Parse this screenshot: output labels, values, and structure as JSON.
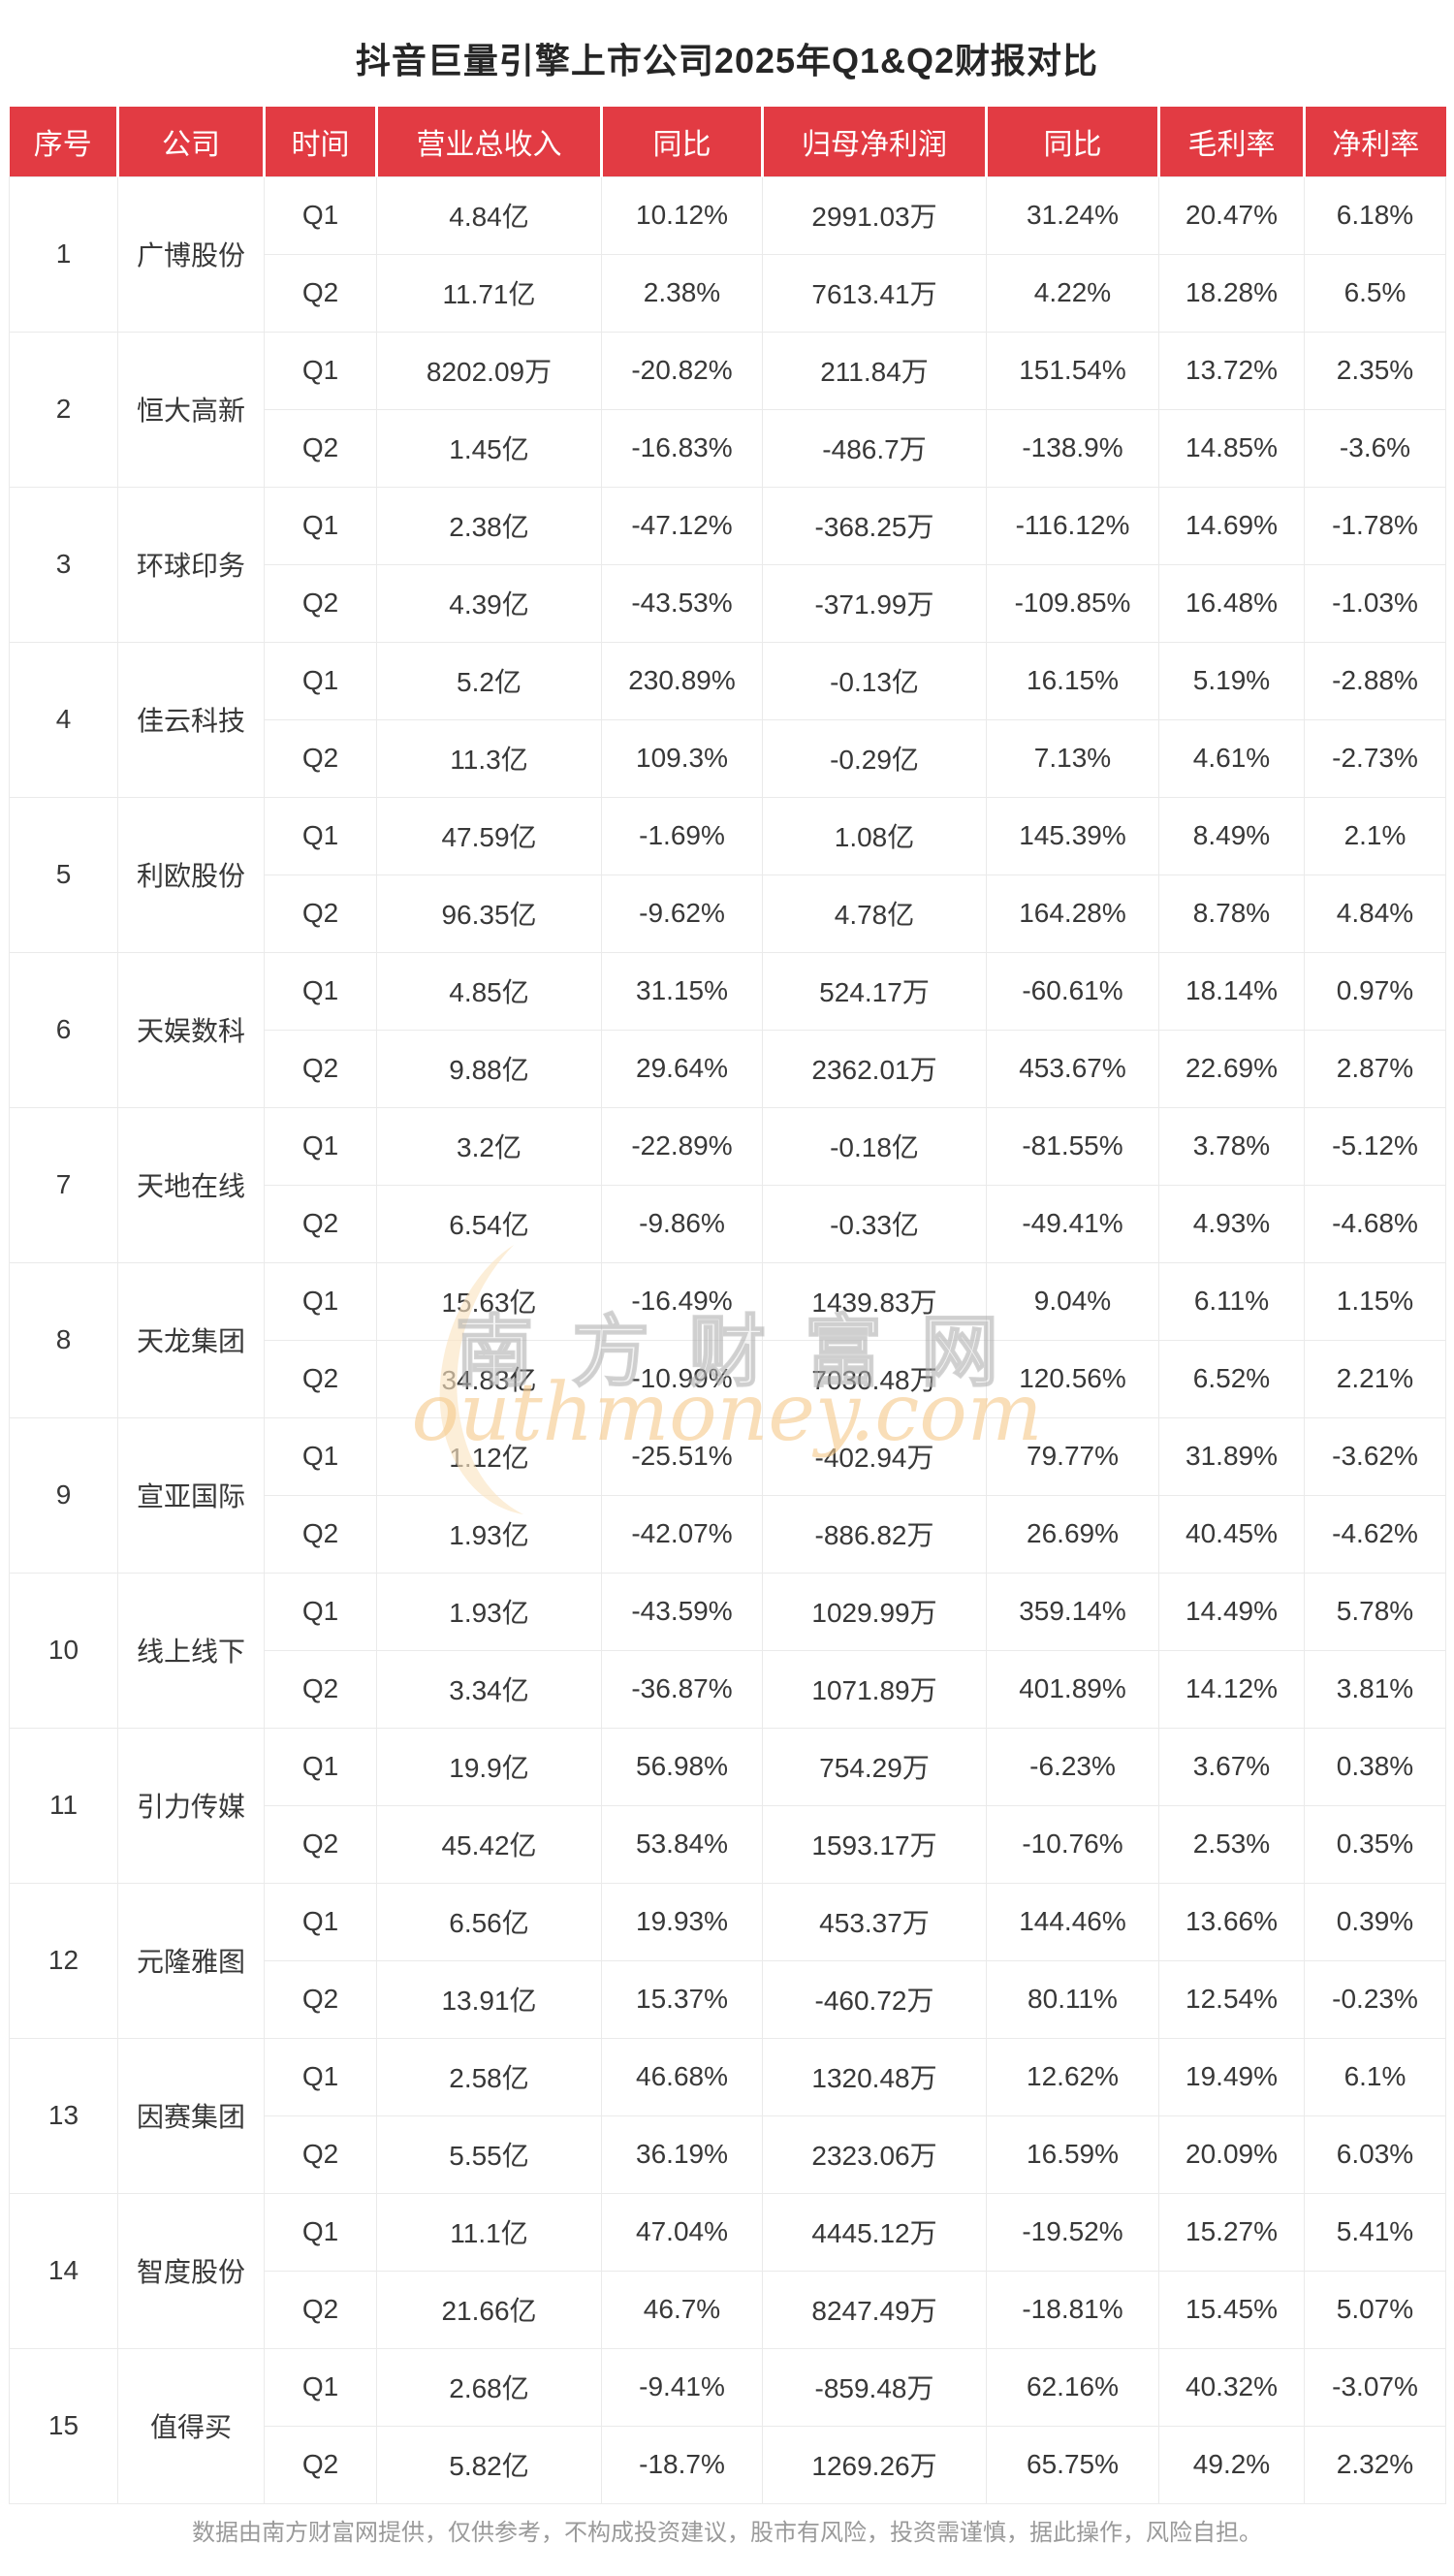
{
  "page": {
    "title": "抖音巨量引擎上市公司2025年Q1&Q2财报对比",
    "footer": "数据由南方财富网提供，仅供参考，不构成投资建议，股市有风险，投资需谨慎，据此操作，风险自担。"
  },
  "watermark": {
    "cn": "南方财富网",
    "en": "outhmoney.com"
  },
  "colors": {
    "header_bg": "#e23b43",
    "header_text": "#ffffff",
    "body_text": "#383838",
    "grid_border": "#eaeaea",
    "footer_text": "#9a9a9a",
    "watermark_orange": "#f6c98c",
    "watermark_gray": "#aaaaaa"
  },
  "table": {
    "columns": [
      "序号",
      "公司",
      "时间",
      "营业总收入",
      "同比",
      "归母净利润",
      "同比",
      "毛利率",
      "净利率"
    ],
    "companies": [
      {
        "no": "1",
        "name": "广博股份",
        "rows": [
          [
            "Q1",
            "4.84亿",
            "10.12%",
            "2991.03万",
            "31.24%",
            "20.47%",
            "6.18%"
          ],
          [
            "Q2",
            "11.71亿",
            "2.38%",
            "7613.41万",
            "4.22%",
            "18.28%",
            "6.5%"
          ]
        ]
      },
      {
        "no": "2",
        "name": "恒大高新",
        "rows": [
          [
            "Q1",
            "8202.09万",
            "-20.82%",
            "211.84万",
            "151.54%",
            "13.72%",
            "2.35%"
          ],
          [
            "Q2",
            "1.45亿",
            "-16.83%",
            "-486.7万",
            "-138.9%",
            "14.85%",
            "-3.6%"
          ]
        ]
      },
      {
        "no": "3",
        "name": "环球印务",
        "rows": [
          [
            "Q1",
            "2.38亿",
            "-47.12%",
            "-368.25万",
            "-116.12%",
            "14.69%",
            "-1.78%"
          ],
          [
            "Q2",
            "4.39亿",
            "-43.53%",
            "-371.99万",
            "-109.85%",
            "16.48%",
            "-1.03%"
          ]
        ]
      },
      {
        "no": "4",
        "name": "佳云科技",
        "rows": [
          [
            "Q1",
            "5.2亿",
            "230.89%",
            "-0.13亿",
            "16.15%",
            "5.19%",
            "-2.88%"
          ],
          [
            "Q2",
            "11.3亿",
            "109.3%",
            "-0.29亿",
            "7.13%",
            "4.61%",
            "-2.73%"
          ]
        ]
      },
      {
        "no": "5",
        "name": "利欧股份",
        "rows": [
          [
            "Q1",
            "47.59亿",
            "-1.69%",
            "1.08亿",
            "145.39%",
            "8.49%",
            "2.1%"
          ],
          [
            "Q2",
            "96.35亿",
            "-9.62%",
            "4.78亿",
            "164.28%",
            "8.78%",
            "4.84%"
          ]
        ]
      },
      {
        "no": "6",
        "name": "天娱数科",
        "rows": [
          [
            "Q1",
            "4.85亿",
            "31.15%",
            "524.17万",
            "-60.61%",
            "18.14%",
            "0.97%"
          ],
          [
            "Q2",
            "9.88亿",
            "29.64%",
            "2362.01万",
            "453.67%",
            "22.69%",
            "2.87%"
          ]
        ]
      },
      {
        "no": "7",
        "name": "天地在线",
        "rows": [
          [
            "Q1",
            "3.2亿",
            "-22.89%",
            "-0.18亿",
            "-81.55%",
            "3.78%",
            "-5.12%"
          ],
          [
            "Q2",
            "6.54亿",
            "-9.86%",
            "-0.33亿",
            "-49.41%",
            "4.93%",
            "-4.68%"
          ]
        ]
      },
      {
        "no": "8",
        "name": "天龙集团",
        "rows": [
          [
            "Q1",
            "15.63亿",
            "-16.49%",
            "1439.83万",
            "9.04%",
            "6.11%",
            "1.15%"
          ],
          [
            "Q2",
            "34.83亿",
            "-10.99%",
            "7030.48万",
            "120.56%",
            "6.52%",
            "2.21%"
          ]
        ]
      },
      {
        "no": "9",
        "name": "宣亚国际",
        "rows": [
          [
            "Q1",
            "1.12亿",
            "-25.51%",
            "-402.94万",
            "79.77%",
            "31.89%",
            "-3.62%"
          ],
          [
            "Q2",
            "1.93亿",
            "-42.07%",
            "-886.82万",
            "26.69%",
            "40.45%",
            "-4.62%"
          ]
        ]
      },
      {
        "no": "10",
        "name": "线上线下",
        "rows": [
          [
            "Q1",
            "1.93亿",
            "-43.59%",
            "1029.99万",
            "359.14%",
            "14.49%",
            "5.78%"
          ],
          [
            "Q2",
            "3.34亿",
            "-36.87%",
            "1071.89万",
            "401.89%",
            "14.12%",
            "3.81%"
          ]
        ]
      },
      {
        "no": "11",
        "name": "引力传媒",
        "rows": [
          [
            "Q1",
            "19.9亿",
            "56.98%",
            "754.29万",
            "-6.23%",
            "3.67%",
            "0.38%"
          ],
          [
            "Q2",
            "45.42亿",
            "53.84%",
            "1593.17万",
            "-10.76%",
            "2.53%",
            "0.35%"
          ]
        ]
      },
      {
        "no": "12",
        "name": "元隆雅图",
        "rows": [
          [
            "Q1",
            "6.56亿",
            "19.93%",
            "453.37万",
            "144.46%",
            "13.66%",
            "0.39%"
          ],
          [
            "Q2",
            "13.91亿",
            "15.37%",
            "-460.72万",
            "80.11%",
            "12.54%",
            "-0.23%"
          ]
        ]
      },
      {
        "no": "13",
        "name": "因赛集团",
        "rows": [
          [
            "Q1",
            "2.58亿",
            "46.68%",
            "1320.48万",
            "12.62%",
            "19.49%",
            "6.1%"
          ],
          [
            "Q2",
            "5.55亿",
            "36.19%",
            "2323.06万",
            "16.59%",
            "20.09%",
            "6.03%"
          ]
        ]
      },
      {
        "no": "14",
        "name": "智度股份",
        "rows": [
          [
            "Q1",
            "11.1亿",
            "47.04%",
            "4445.12万",
            "-19.52%",
            "15.27%",
            "5.41%"
          ],
          [
            "Q2",
            "21.66亿",
            "46.7%",
            "8247.49万",
            "-18.81%",
            "15.45%",
            "5.07%"
          ]
        ]
      },
      {
        "no": "15",
        "name": "值得买",
        "rows": [
          [
            "Q1",
            "2.68亿",
            "-9.41%",
            "-859.48万",
            "62.16%",
            "40.32%",
            "-3.07%"
          ],
          [
            "Q2",
            "5.82亿",
            "-18.7%",
            "1269.26万",
            "65.75%",
            "49.2%",
            "2.32%"
          ]
        ]
      }
    ]
  }
}
